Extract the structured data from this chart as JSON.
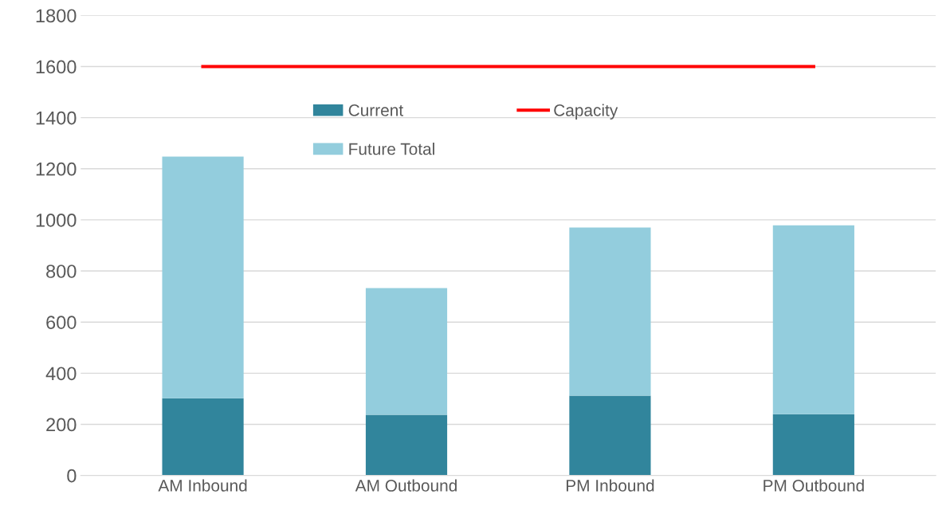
{
  "chart_data": {
    "type": "bar",
    "stacked": true,
    "categories": [
      "AM Inbound",
      "AM Outbound",
      "PM Inbound",
      "PM Outbound"
    ],
    "series": [
      {
        "name": "Current",
        "color": "#31859c",
        "values": [
          302,
          237,
          312,
          240
        ]
      },
      {
        "name": "Future Total",
        "color": "#93cddd",
        "values": [
          946,
          496,
          658,
          739
        ]
      },
      {
        "name": "Capacity",
        "type": "line",
        "color": "#ff0000",
        "values": [
          1600,
          1600,
          1600,
          1600
        ]
      }
    ],
    "ylim": [
      0,
      1800
    ],
    "yticks": [
      0,
      200,
      400,
      600,
      800,
      1000,
      1200,
      1400,
      1600,
      1800
    ],
    "grid": "y",
    "legend": "top",
    "marker": "none",
    "line_style": "solid"
  }
}
